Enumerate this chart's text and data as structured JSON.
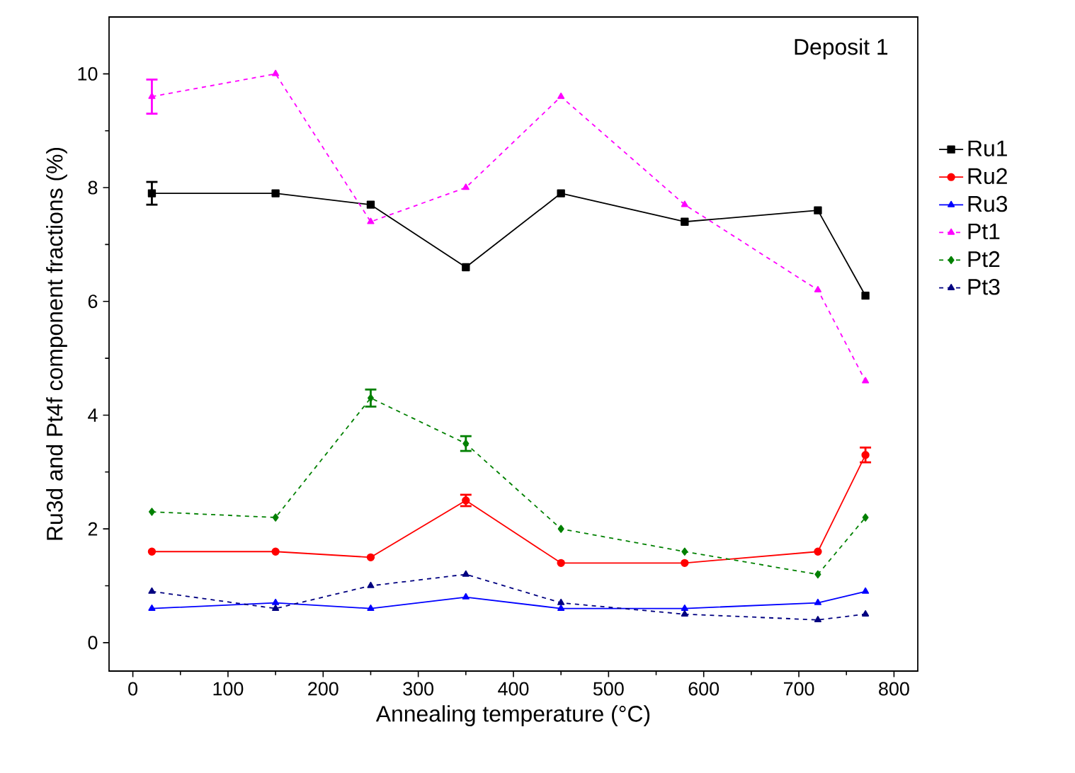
{
  "chart_data": {
    "type": "line",
    "xlabel": "Annealing temperature (°C)",
    "ylabel": "Ru3d and Pt4f component fractions (%)",
    "x": [
      20,
      150,
      250,
      350,
      450,
      580,
      720,
      770
    ],
    "xlim": [
      -25,
      825
    ],
    "xticks": [
      0,
      100,
      200,
      300,
      400,
      500,
      600,
      700,
      800
    ],
    "ylim": [
      -0.5,
      11
    ],
    "yticks": [
      0,
      2,
      4,
      6,
      8,
      10
    ],
    "legend": "right",
    "grid": false,
    "annotations": [
      "Deposit 1"
    ],
    "series": [
      {
        "name": "Ru1",
        "color": "#000000",
        "marker": "square",
        "line_style": "solid",
        "values": [
          7.9,
          7.9,
          7.7,
          6.6,
          7.9,
          7.4,
          7.6,
          6.1
        ],
        "errors": [
          0.2,
          null,
          null,
          null,
          null,
          null,
          null,
          null
        ]
      },
      {
        "name": "Ru2",
        "color": "#ff0000",
        "marker": "circle",
        "line_style": "solid",
        "values": [
          1.6,
          1.6,
          1.5,
          2.5,
          1.4,
          1.4,
          1.6,
          3.3
        ],
        "errors": [
          null,
          null,
          null,
          0.1,
          null,
          null,
          null,
          0.13
        ]
      },
      {
        "name": "Ru3",
        "color": "#0000ff",
        "marker": "triangle",
        "line_style": "solid",
        "values": [
          0.6,
          0.7,
          0.6,
          0.8,
          0.6,
          0.6,
          0.7,
          0.9
        ]
      },
      {
        "name": "Pt1",
        "color": "#ff00ff",
        "marker": "triangle",
        "line_style": "dashed",
        "values": [
          9.6,
          10.0,
          7.4,
          8.0,
          9.6,
          7.7,
          6.2,
          4.6
        ],
        "errors": [
          0.3,
          null,
          null,
          null,
          null,
          null,
          null,
          null
        ]
      },
      {
        "name": "Pt2",
        "color": "#008000",
        "marker": "diamond",
        "line_style": "dashed",
        "values": [
          2.3,
          2.2,
          4.3,
          3.5,
          2.0,
          1.6,
          1.2,
          2.2
        ],
        "errors": [
          null,
          null,
          0.15,
          0.13,
          null,
          null,
          null,
          null
        ]
      },
      {
        "name": "Pt3",
        "color": "#000080",
        "marker": "triangle",
        "line_style": "dashed",
        "values": [
          0.9,
          0.6,
          1.0,
          1.2,
          0.7,
          0.5,
          0.4,
          0.5
        ]
      }
    ]
  }
}
